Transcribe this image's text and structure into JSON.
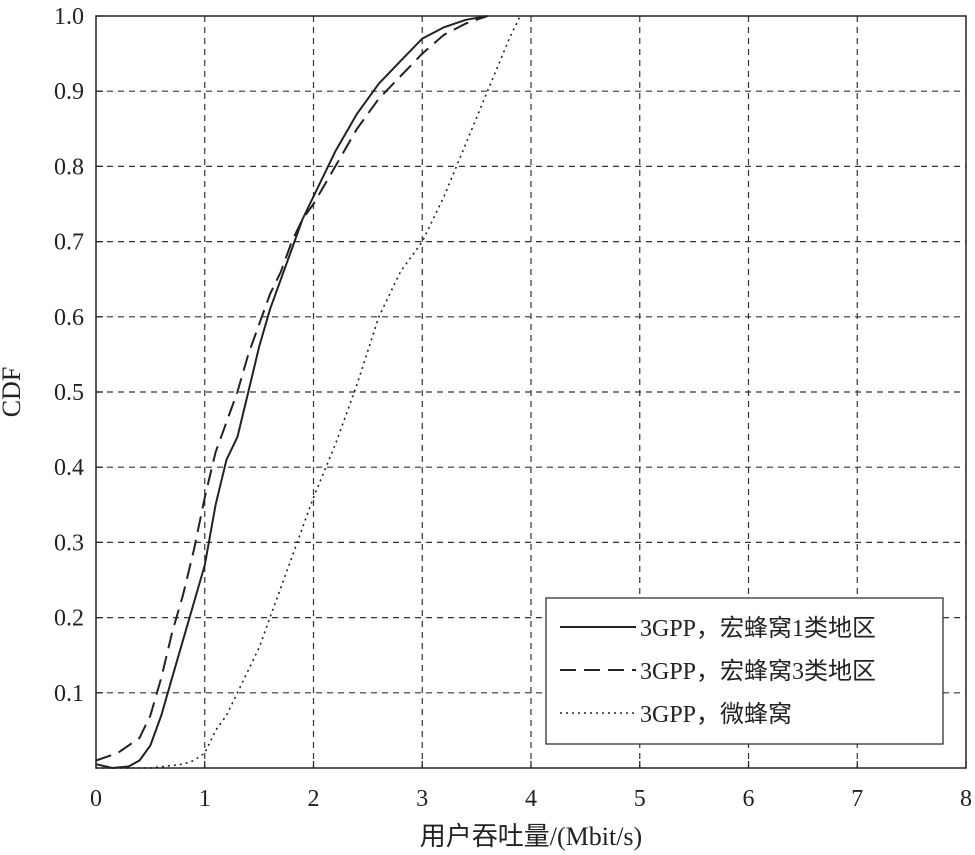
{
  "chart_data": {
    "type": "line",
    "xlabel": "用户吞吐量/(Mbit/s)",
    "ylabel": "CDF",
    "xlim": [
      0,
      8
    ],
    "ylim": [
      0,
      1
    ],
    "xticks": [
      "0",
      "1",
      "2",
      "3",
      "4",
      "5",
      "6",
      "7",
      "8"
    ],
    "yticks": [
      "0.1",
      "0.2",
      "0.3",
      "0.4",
      "0.5",
      "0.6",
      "0.7",
      "0.8",
      "0.9",
      "1.0"
    ],
    "grid": true,
    "legend_position": "bottom-right",
    "series": [
      {
        "name": "3GPP，宏蜂窝1类地区",
        "style": "solid",
        "x": [
          0,
          0.15,
          0.3,
          0.4,
          0.5,
          0.6,
          0.7,
          0.8,
          0.9,
          1.0,
          1.1,
          1.2,
          1.3,
          1.4,
          1.5,
          1.6,
          1.7,
          1.8,
          1.9,
          2.0,
          2.2,
          2.4,
          2.6,
          2.8,
          3.0,
          3.2,
          3.4,
          3.6
        ],
        "y": [
          0.005,
          0.0,
          0.002,
          0.01,
          0.03,
          0.07,
          0.12,
          0.17,
          0.22,
          0.27,
          0.35,
          0.41,
          0.44,
          0.5,
          0.56,
          0.61,
          0.65,
          0.69,
          0.73,
          0.76,
          0.82,
          0.87,
          0.91,
          0.94,
          0.97,
          0.985,
          0.995,
          1.0
        ]
      },
      {
        "name": "3GPP，宏蜂窝3类地区",
        "style": "dashed",
        "x": [
          0,
          0.2,
          0.4,
          0.5,
          0.6,
          0.7,
          0.8,
          0.9,
          1.0,
          1.1,
          1.2,
          1.3,
          1.4,
          1.5,
          1.6,
          1.7,
          1.8,
          1.9,
          2.0,
          2.2,
          2.4,
          2.6,
          2.8,
          3.0,
          3.2,
          3.4,
          3.6
        ],
        "y": [
          0.01,
          0.02,
          0.04,
          0.07,
          0.12,
          0.18,
          0.23,
          0.29,
          0.36,
          0.42,
          0.46,
          0.5,
          0.55,
          0.59,
          0.63,
          0.66,
          0.7,
          0.73,
          0.75,
          0.8,
          0.85,
          0.89,
          0.92,
          0.95,
          0.975,
          0.99,
          1.0
        ]
      },
      {
        "name": "3GPP，微蜂窝",
        "style": "dotted",
        "x": [
          0,
          0.5,
          0.8,
          0.9,
          1.0,
          1.1,
          1.2,
          1.3,
          1.4,
          1.5,
          1.6,
          1.7,
          1.8,
          1.9,
          2.0,
          2.2,
          2.4,
          2.6,
          2.8,
          3.0,
          3.2,
          3.4,
          3.6,
          3.8,
          3.9
        ],
        "y": [
          0.0,
          0.0,
          0.005,
          0.01,
          0.02,
          0.05,
          0.07,
          0.1,
          0.13,
          0.16,
          0.2,
          0.24,
          0.28,
          0.32,
          0.36,
          0.43,
          0.51,
          0.6,
          0.66,
          0.7,
          0.76,
          0.83,
          0.9,
          0.97,
          1.0
        ]
      }
    ]
  }
}
